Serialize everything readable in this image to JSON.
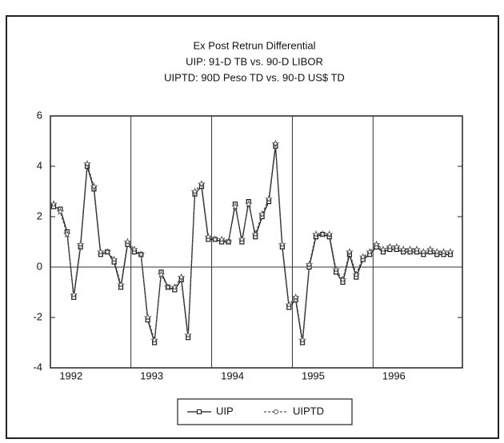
{
  "chart_data": {
    "type": "line",
    "title": "Ex Post Retrun Differential",
    "subtitle": [
      "UIP:  91-D TB vs. 90-D LIBOR",
      "UIPTD: 90D Peso TD vs. 90-D US$ TD"
    ],
    "categories": [
      "1992",
      null,
      null,
      null,
      null,
      null,
      null,
      null,
      null,
      null,
      null,
      null,
      "1993",
      null,
      null,
      null,
      null,
      null,
      null,
      null,
      null,
      null,
      null,
      null,
      "1994",
      null,
      null,
      null,
      null,
      null,
      null,
      null,
      null,
      null,
      null,
      null,
      "1995",
      null,
      null,
      null,
      null,
      null,
      null,
      null,
      null,
      null,
      null,
      null,
      "1996",
      null,
      null,
      null,
      null,
      null,
      null,
      null,
      null,
      null,
      null,
      null
    ],
    "series": [
      {
        "name": "UIP",
        "color": "#1a1a1a",
        "marker": "square",
        "dash": false,
        "values": [
          2.4,
          2.3,
          1.4,
          -1.2,
          0.8,
          4.0,
          3.1,
          0.5,
          0.6,
          0.2,
          -0.8,
          0.9,
          0.6,
          0.5,
          -2.1,
          -3.0,
          -0.2,
          -0.8,
          -0.9,
          -0.5,
          -2.8,
          2.9,
          3.2,
          1.1,
          1.1,
          1.0,
          1.0,
          2.5,
          1.0,
          2.6,
          1.2,
          2.0,
          2.6,
          4.8,
          0.8,
          -1.6,
          -1.3,
          -3.0,
          0.0,
          1.2,
          1.3,
          1.2,
          -0.2,
          -0.6,
          0.5,
          -0.4,
          0.3,
          0.5,
          0.8,
          0.6,
          0.7,
          0.7,
          0.6,
          0.6,
          0.6,
          0.5,
          0.6,
          0.5,
          0.5,
          0.5
        ]
      },
      {
        "name": "UIPTD",
        "color": "#555555",
        "marker": "star",
        "dash": true,
        "values": [
          2.5,
          2.2,
          1.3,
          -1.1,
          0.9,
          4.1,
          3.2,
          0.6,
          0.6,
          0.3,
          -0.7,
          1.0,
          0.7,
          0.5,
          -2.0,
          -2.9,
          -0.3,
          -0.8,
          -0.8,
          -0.4,
          -2.7,
          3.0,
          3.3,
          1.2,
          1.1,
          1.1,
          1.0,
          2.4,
          1.1,
          2.5,
          1.3,
          2.1,
          2.7,
          4.9,
          0.9,
          -1.5,
          -1.2,
          -2.9,
          0.1,
          1.3,
          1.3,
          1.3,
          -0.1,
          -0.5,
          0.6,
          -0.3,
          0.4,
          0.6,
          0.9,
          0.7,
          0.8,
          0.8,
          0.7,
          0.7,
          0.7,
          0.6,
          0.7,
          0.6,
          0.6,
          0.6
        ]
      }
    ],
    "ylim": [
      -4,
      6
    ],
    "yticks": [
      -4,
      -2,
      0,
      2,
      4,
      6
    ],
    "zero_line": true,
    "legend": "bottom"
  }
}
